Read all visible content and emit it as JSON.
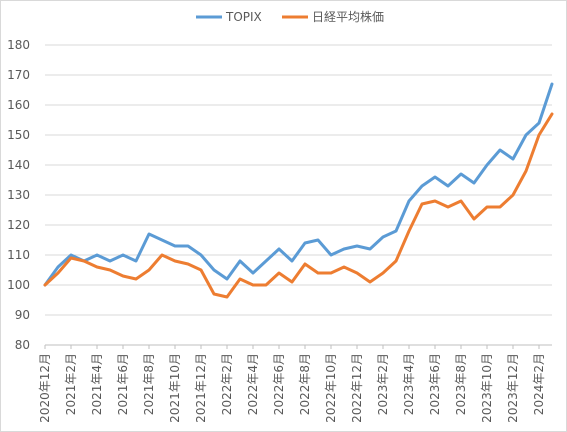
{
  "chart_data": {
    "type": "line",
    "title": "",
    "xlabel": "",
    "ylabel": "",
    "ylim": [
      80,
      180
    ],
    "yticks": [
      80,
      90,
      100,
      110,
      120,
      130,
      140,
      150,
      160,
      170,
      180
    ],
    "grid": true,
    "legend_position": "top",
    "x": [
      "2020年12月",
      "2021年1月",
      "2021年2月",
      "2021年3月",
      "2021年4月",
      "2021年5月",
      "2021年6月",
      "2021年7月",
      "2021年8月",
      "2021年9月",
      "2021年10月",
      "2021年11月",
      "2021年12月",
      "2022年1月",
      "2022年2月",
      "2022年3月",
      "2022年4月",
      "2022年5月",
      "2022年6月",
      "2022年7月",
      "2022年8月",
      "2022年9月",
      "2022年10月",
      "2022年11月",
      "2022年12月",
      "2023年1月",
      "2023年2月",
      "2023年3月",
      "2023年4月",
      "2023年5月",
      "2023年6月",
      "2023年7月",
      "2023年8月",
      "2023年9月",
      "2023年10月",
      "2023年11月",
      "2023年12月",
      "2024年1月",
      "2024年2月",
      "2024年3月"
    ],
    "xtick_labels": [
      "2020年12月",
      "2021年2月",
      "2021年4月",
      "2021年6月",
      "2021年8月",
      "2021年10月",
      "2021年12月",
      "2022年2月",
      "2022年4月",
      "2022年6月",
      "2022年8月",
      "2022年10月",
      "2022年12月",
      "2023年2月",
      "2023年4月",
      "2023年6月",
      "2023年8月",
      "2023年10月",
      "2023年12月",
      "2024年2月"
    ],
    "series": [
      {
        "name": "TOPIX",
        "color": "#5b9bd5",
        "values": [
          100,
          106,
          110,
          108,
          110,
          108,
          110,
          108,
          117,
          115,
          113,
          113,
          110,
          105,
          102,
          108,
          104,
          108,
          112,
          108,
          114,
          115,
          110,
          112,
          113,
          112,
          116,
          118,
          128,
          133,
          136,
          133,
          137,
          134,
          140,
          145,
          142,
          150,
          154,
          167
        ]
      },
      {
        "name": "日経平均株価",
        "color": "#ed7d31",
        "values": [
          100,
          104,
          109,
          108,
          106,
          105,
          103,
          102,
          105,
          110,
          108,
          107,
          105,
          97,
          96,
          102,
          100,
          100,
          104,
          101,
          107,
          104,
          104,
          106,
          104,
          101,
          104,
          108,
          118,
          127,
          128,
          126,
          128,
          122,
          126,
          126,
          130,
          138,
          150,
          157
        ]
      }
    ]
  }
}
